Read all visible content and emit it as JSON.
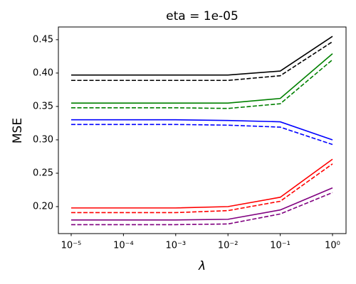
{
  "chart_data": {
    "type": "line",
    "title": "eta = 1e-05",
    "xlabel": "λ",
    "ylabel": "MSE",
    "x": [
      1e-05,
      0.0001,
      0.001,
      0.01,
      0.1,
      1
    ],
    "xscale": "log",
    "xlim": [
      5.69e-06,
      1.815
    ],
    "xticks": [
      {
        "value": 1e-05,
        "label": "10⁻⁵"
      },
      {
        "value": 0.0001,
        "label": "10⁻⁴"
      },
      {
        "value": 0.001,
        "label": "10⁻³"
      },
      {
        "value": 0.01,
        "label": "10⁻²"
      },
      {
        "value": 0.1,
        "label": "10⁻¹"
      },
      {
        "value": 1,
        "label": "10⁰"
      }
    ],
    "ylim": [
      0.1596,
      0.469
    ],
    "yticks": [
      {
        "value": 0.2,
        "label": "0.20"
      },
      0.25,
      {
        "value": 0.3,
        "label": "0.30"
      },
      0.35,
      {
        "value": 0.4,
        "label": "0.40"
      },
      0.45
    ],
    "grid": false,
    "series": [
      {
        "color": "#000000",
        "dashed": false,
        "values": [
          0.397,
          0.397,
          0.397,
          0.397,
          0.403,
          0.455
        ]
      },
      {
        "color": "#000000",
        "dashed": true,
        "values": [
          0.389,
          0.389,
          0.389,
          0.389,
          0.396,
          0.447
        ]
      },
      {
        "color": "#008000",
        "dashed": false,
        "values": [
          0.355,
          0.355,
          0.355,
          0.355,
          0.362,
          0.429
        ]
      },
      {
        "color": "#008000",
        "dashed": true,
        "values": [
          0.348,
          0.348,
          0.348,
          0.347,
          0.354,
          0.42
        ]
      },
      {
        "color": "#0000ff",
        "dashed": false,
        "values": [
          0.33,
          0.33,
          0.33,
          0.329,
          0.327,
          0.3
        ]
      },
      {
        "color": "#0000ff",
        "dashed": true,
        "values": [
          0.323,
          0.323,
          0.323,
          0.322,
          0.319,
          0.293
        ]
      },
      {
        "color": "#ff0000",
        "dashed": false,
        "values": [
          0.198,
          0.198,
          0.198,
          0.2,
          0.214,
          0.271
        ]
      },
      {
        "color": "#ff0000",
        "dashed": true,
        "values": [
          0.191,
          0.191,
          0.191,
          0.194,
          0.208,
          0.264
        ]
      },
      {
        "color": "#800080",
        "dashed": false,
        "values": [
          0.18,
          0.18,
          0.18,
          0.181,
          0.195,
          0.228
        ]
      },
      {
        "color": "#800080",
        "dashed": true,
        "values": [
          0.173,
          0.173,
          0.173,
          0.174,
          0.189,
          0.221
        ]
      }
    ]
  }
}
